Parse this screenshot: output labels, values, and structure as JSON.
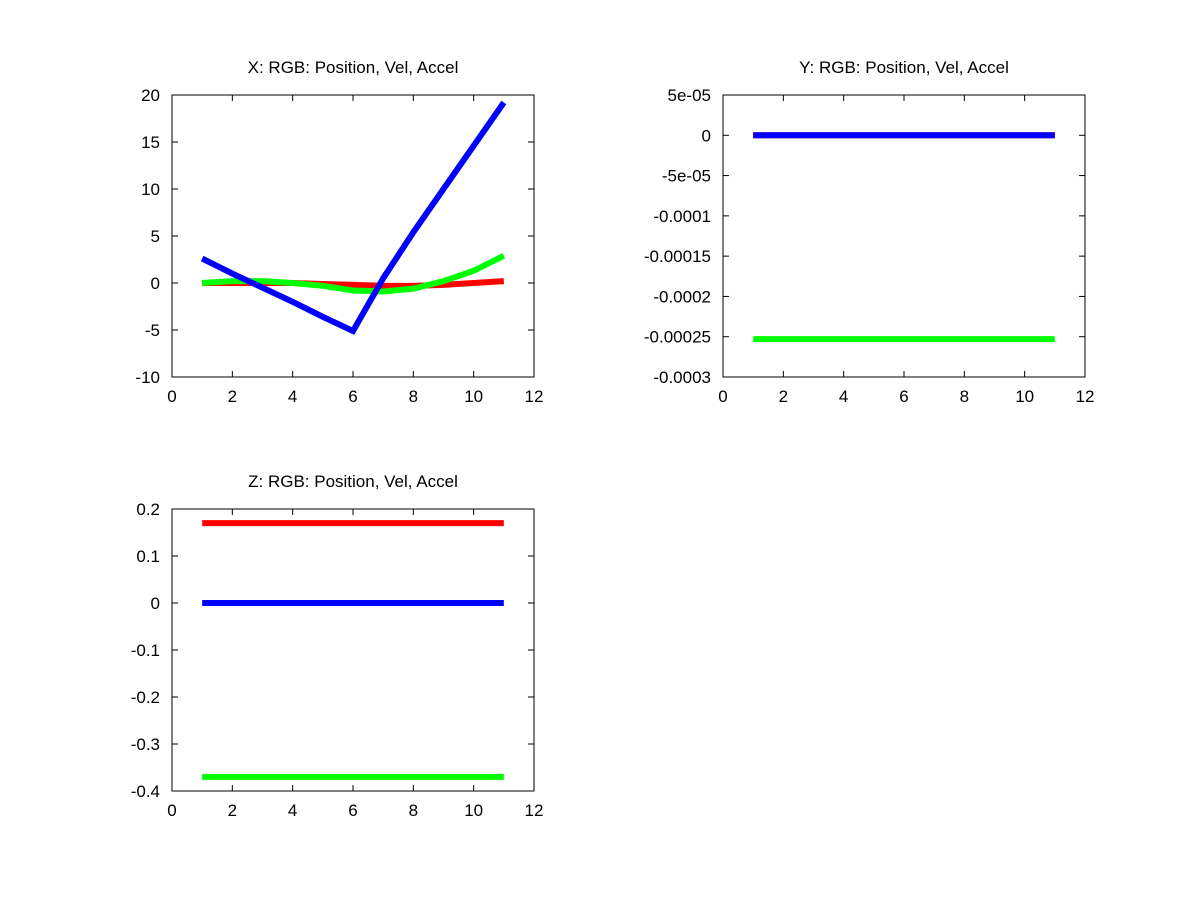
{
  "chart_data": [
    {
      "type": "line",
      "title": "X: RGB: Position, Vel, Accel",
      "xlabel": "",
      "ylabel": "",
      "xlim": [
        0,
        12
      ],
      "ylim": [
        -10,
        20
      ],
      "xticks": [
        "0",
        "2",
        "4",
        "6",
        "8",
        "10",
        "12"
      ],
      "yticks": [
        "-10",
        "-5",
        "0",
        "5",
        "10",
        "15",
        "20"
      ],
      "grid": false,
      "x": [
        1,
        2,
        3,
        4,
        5,
        6,
        7,
        8,
        9,
        10,
        11
      ],
      "series": [
        {
          "color": "#ff0000",
          "values": [
            0,
            0,
            0,
            0,
            -0.1,
            -0.2,
            -0.3,
            -0.3,
            -0.2,
            0,
            0.2
          ]
        },
        {
          "color": "#00ff00",
          "values": [
            0,
            0.2,
            0.2,
            0,
            -0.3,
            -0.8,
            -0.9,
            -0.6,
            0.2,
            1.3,
            2.9
          ]
        },
        {
          "color": "#0000ff",
          "values": [
            2.6,
            1.0,
            -0.5,
            -2.0,
            -3.6,
            -5.1,
            0.5,
            5.4,
            10.0,
            14.6,
            19.2
          ]
        }
      ]
    },
    {
      "type": "line",
      "title": "Y: RGB: Position, Vel, Accel",
      "xlabel": "",
      "ylabel": "",
      "xlim": [
        0,
        12
      ],
      "ylim": [
        -0.0003,
        5e-05
      ],
      "xticks": [
        "0",
        "2",
        "4",
        "6",
        "8",
        "10",
        "12"
      ],
      "yticks": [
        "-0.0003",
        "-0.00025",
        "-0.0002",
        "-0.00015",
        "-0.0001",
        "-5e-05",
        "0",
        "5e-05"
      ],
      "grid": false,
      "x": [
        1,
        11
      ],
      "series": [
        {
          "color": "#ff0000",
          "values": [
            0,
            0
          ]
        },
        {
          "color": "#00ff00",
          "values": [
            -0.000253,
            -0.000253
          ]
        },
        {
          "color": "#0000ff",
          "values": [
            0,
            0
          ]
        }
      ]
    },
    {
      "type": "line",
      "title": "Z: RGB: Position, Vel, Accel",
      "xlabel": "",
      "ylabel": "",
      "xlim": [
        0,
        12
      ],
      "ylim": [
        -0.4,
        0.2
      ],
      "xticks": [
        "0",
        "2",
        "4",
        "6",
        "8",
        "10",
        "12"
      ],
      "yticks": [
        "-0.4",
        "-0.3",
        "-0.2",
        "-0.1",
        "0",
        "0.1",
        "0.2"
      ],
      "grid": false,
      "x": [
        1,
        11
      ],
      "series": [
        {
          "color": "#ff0000",
          "values": [
            0.17,
            0.17
          ]
        },
        {
          "color": "#00ff00",
          "values": [
            -0.37,
            -0.37
          ]
        },
        {
          "color": "#0000ff",
          "values": [
            0,
            0
          ]
        }
      ]
    }
  ]
}
